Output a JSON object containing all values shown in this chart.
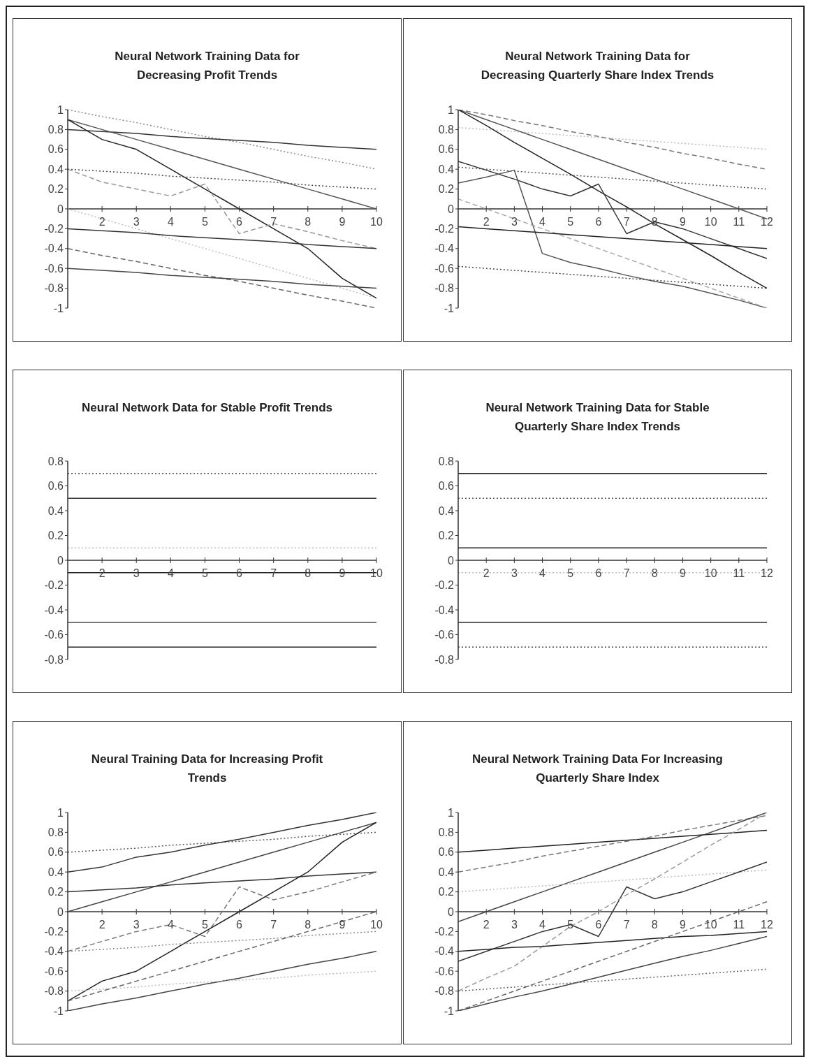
{
  "chart_data": [
    {
      "type": "line",
      "title": "Neural Network Training Data for Decreasing Profit Trends",
      "x": [
        1,
        2,
        3,
        4,
        5,
        6,
        7,
        8,
        9,
        10
      ],
      "xlim": [
        1,
        10
      ],
      "xticks": [
        2,
        3,
        4,
        5,
        6,
        7,
        8,
        9,
        10
      ],
      "ylim": [
        -1,
        1
      ],
      "yticks": [
        -1,
        -0.8,
        -0.6,
        -0.4,
        -0.2,
        0,
        0.2,
        0.4,
        0.6,
        0.8,
        1
      ],
      "series": [
        {
          "color": "#888888",
          "line_style": "dotted",
          "values": [
            1,
            0.93,
            0.87,
            0.8,
            0.73,
            0.67,
            0.6,
            0.53,
            0.47,
            0.4
          ]
        },
        {
          "color": "#333333",
          "values": [
            0.8,
            0.78,
            0.76,
            0.73,
            0.71,
            0.69,
            0.67,
            0.64,
            0.62,
            0.6
          ]
        },
        {
          "color": "#555555",
          "values": [
            0.9,
            0.8,
            0.7,
            0.6,
            0.5,
            0.4,
            0.3,
            0.2,
            0.1,
            0
          ]
        },
        {
          "color": "#222222",
          "values": [
            0.9,
            0.7,
            0.6,
            0.4,
            0.2,
            0,
            -0.2,
            -0.4,
            -0.7,
            -0.9
          ]
        },
        {
          "color": "#444444",
          "line_style": "dotted",
          "values": [
            0.4,
            0.38,
            0.36,
            0.33,
            0.31,
            0.29,
            0.27,
            0.24,
            0.22,
            0.2
          ]
        },
        {
          "color": "#999999",
          "line_style": "dashed",
          "values": [
            0.4,
            0.27,
            0.2,
            0.13,
            0.25,
            -0.25,
            -0.15,
            -0.23,
            -0.32,
            -0.4
          ]
        },
        {
          "color": "#bbbbbb",
          "line_style": "dotted",
          "values": [
            0,
            -0.1,
            -0.2,
            -0.3,
            -0.4,
            -0.5,
            -0.6,
            -0.7,
            -0.8,
            -0.9
          ]
        },
        {
          "color": "#333333",
          "values": [
            -0.2,
            -0.22,
            -0.24,
            -0.27,
            -0.29,
            -0.31,
            -0.33,
            -0.36,
            -0.38,
            -0.4
          ]
        },
        {
          "color": "#666666",
          "line_style": "dashed",
          "values": [
            -0.4,
            -0.47,
            -0.53,
            -0.6,
            -0.67,
            -0.73,
            -0.8,
            -0.87,
            -0.93,
            -1
          ]
        },
        {
          "color": "#444444",
          "values": [
            -0.6,
            -0.62,
            -0.64,
            -0.67,
            -0.69,
            -0.71,
            -0.73,
            -0.76,
            -0.78,
            -0.8
          ]
        }
      ]
    },
    {
      "type": "line",
      "title": "Neural Network Training Data for Decreasing Quarterly Share Index Trends",
      "x": [
        1,
        2,
        3,
        4,
        5,
        6,
        7,
        8,
        9,
        10,
        11,
        12
      ],
      "xlim": [
        1,
        12
      ],
      "xticks": [
        2,
        3,
        4,
        5,
        6,
        7,
        8,
        9,
        10,
        11,
        12
      ],
      "ylim": [
        -1,
        1
      ],
      "yticks": [
        -1,
        -0.8,
        -0.6,
        -0.4,
        -0.2,
        0,
        0.2,
        0.4,
        0.6,
        0.8,
        1
      ],
      "series": [
        {
          "color": "#bbbbbb",
          "line_style": "dotted",
          "values": [
            0.82,
            0.8,
            0.78,
            0.76,
            0.74,
            0.72,
            0.7,
            0.68,
            0.66,
            0.64,
            0.62,
            0.6
          ]
        },
        {
          "color": "#777777",
          "line_style": "dashed",
          "values": [
            1,
            0.95,
            0.89,
            0.84,
            0.78,
            0.73,
            0.67,
            0.62,
            0.56,
            0.51,
            0.45,
            0.4
          ]
        },
        {
          "color": "#555555",
          "values": [
            1,
            0.9,
            0.8,
            0.7,
            0.6,
            0.5,
            0.4,
            0.3,
            0.2,
            0.1,
            0,
            -0.1
          ]
        },
        {
          "color": "#222222",
          "values": [
            1,
            0.84,
            0.67,
            0.51,
            0.35,
            0.18,
            0.02,
            -0.15,
            -0.31,
            -0.47,
            -0.64,
            -0.8
          ]
        },
        {
          "color": "#555555",
          "line_style": "dotted",
          "values": [
            0.42,
            0.4,
            0.38,
            0.36,
            0.34,
            0.32,
            0.3,
            0.28,
            0.26,
            0.24,
            0.22,
            0.2
          ]
        },
        {
          "color": "#333333",
          "values": [
            0.48,
            0.39,
            0.3,
            0.2,
            0.13,
            0.25,
            -0.25,
            -0.13,
            -0.2,
            -0.3,
            -0.4,
            -0.5
          ]
        },
        {
          "color": "#555555",
          "values": [
            0.26,
            0.32,
            0.39,
            -0.45,
            -0.54,
            -0.6,
            -0.67,
            -0.73,
            -0.78,
            -0.85,
            -0.92,
            -1
          ]
        },
        {
          "color": "#aaaaaa",
          "line_style": "dashed",
          "values": [
            0.1,
            0,
            -0.1,
            -0.2,
            -0.3,
            -0.4,
            -0.5,
            -0.6,
            -0.7,
            -0.8,
            -0.9,
            -1
          ]
        },
        {
          "color": "#222222",
          "values": [
            -0.18,
            -0.2,
            -0.22,
            -0.24,
            -0.26,
            -0.28,
            -0.3,
            -0.32,
            -0.34,
            -0.36,
            -0.38,
            -0.4
          ]
        },
        {
          "color": "#444444",
          "line_style": "dotted",
          "values": [
            -0.58,
            -0.6,
            -0.62,
            -0.64,
            -0.66,
            -0.68,
            -0.7,
            -0.72,
            -0.74,
            -0.76,
            -0.78,
            -0.8
          ]
        }
      ]
    },
    {
      "type": "line",
      "title": "Neural Network Data for Stable Profit Trends",
      "x": [
        1,
        2,
        3,
        4,
        5,
        6,
        7,
        8,
        9,
        10
      ],
      "xlim": [
        1,
        10
      ],
      "xticks": [
        2,
        3,
        4,
        5,
        6,
        7,
        8,
        9,
        10
      ],
      "ylim": [
        -0.8,
        0.8
      ],
      "yticks": [
        -0.8,
        -0.6,
        -0.4,
        -0.2,
        0,
        0.2,
        0.4,
        0.6,
        0.8
      ],
      "series": [
        {
          "color": "#555555",
          "line_style": "dotted",
          "values": [
            0.7,
            0.7,
            0.7,
            0.7,
            0.7,
            0.7,
            0.7,
            0.7,
            0.7,
            0.7
          ]
        },
        {
          "color": "#333333",
          "values": [
            0.5,
            0.5,
            0.5,
            0.5,
            0.5,
            0.5,
            0.5,
            0.5,
            0.5,
            0.5
          ]
        },
        {
          "color": "#bbbbbb",
          "line_style": "dotted",
          "values": [
            0.1,
            0.1,
            0.1,
            0.1,
            0.1,
            0.1,
            0.1,
            0.1,
            0.1,
            0.1
          ]
        },
        {
          "color": "#222222",
          "values": [
            -0.1,
            -0.1,
            -0.1,
            -0.1,
            -0.1,
            -0.1,
            -0.1,
            -0.1,
            -0.1,
            -0.1
          ]
        },
        {
          "color": "#444444",
          "values": [
            -0.5,
            -0.5,
            -0.5,
            -0.5,
            -0.5,
            -0.5,
            -0.5,
            -0.5,
            -0.5,
            -0.5
          ]
        },
        {
          "color": "#222222",
          "values": [
            -0.7,
            -0.7,
            -0.7,
            -0.7,
            -0.7,
            -0.7,
            -0.7,
            -0.7,
            -0.7,
            -0.7
          ]
        }
      ]
    },
    {
      "type": "line",
      "title": "Neural Network Training Data for Stable Quarterly Share Index Trends",
      "x": [
        1,
        2,
        3,
        4,
        5,
        6,
        7,
        8,
        9,
        10,
        11,
        12
      ],
      "xlim": [
        1,
        12
      ],
      "xticks": [
        2,
        3,
        4,
        5,
        6,
        7,
        8,
        9,
        10,
        11,
        12
      ],
      "ylim": [
        -0.8,
        0.8
      ],
      "yticks": [
        -0.8,
        -0.6,
        -0.4,
        -0.2,
        0,
        0.2,
        0.4,
        0.6,
        0.8
      ],
      "series": [
        {
          "color": "#222222",
          "values": [
            0.7,
            0.7,
            0.7,
            0.7,
            0.7,
            0.7,
            0.7,
            0.7,
            0.7,
            0.7,
            0.7,
            0.7
          ]
        },
        {
          "color": "#555555",
          "line_style": "dotted",
          "values": [
            0.5,
            0.5,
            0.5,
            0.5,
            0.5,
            0.5,
            0.5,
            0.5,
            0.5,
            0.5,
            0.5,
            0.5
          ]
        },
        {
          "color": "#222222",
          "values": [
            0.1,
            0.1,
            0.1,
            0.1,
            0.1,
            0.1,
            0.1,
            0.1,
            0.1,
            0.1,
            0.1,
            0.1
          ]
        },
        {
          "color": "#bbbbbb",
          "line_style": "dotted",
          "values": [
            -0.1,
            -0.1,
            -0.1,
            -0.1,
            -0.1,
            -0.1,
            -0.1,
            -0.1,
            -0.1,
            -0.1,
            -0.1,
            -0.1
          ]
        },
        {
          "color": "#222222",
          "values": [
            -0.5,
            -0.5,
            -0.5,
            -0.5,
            -0.5,
            -0.5,
            -0.5,
            -0.5,
            -0.5,
            -0.5,
            -0.5,
            -0.5
          ]
        },
        {
          "color": "#444444",
          "line_style": "dotted",
          "values": [
            -0.7,
            -0.7,
            -0.7,
            -0.7,
            -0.7,
            -0.7,
            -0.7,
            -0.7,
            -0.7,
            -0.7,
            -0.7,
            -0.7
          ]
        }
      ]
    },
    {
      "type": "line",
      "title": "Neural Training Data for Increasing Profit Trends",
      "x": [
        1,
        2,
        3,
        4,
        5,
        6,
        7,
        8,
        9,
        10
      ],
      "xlim": [
        1,
        10
      ],
      "xticks": [
        2,
        3,
        4,
        5,
        6,
        7,
        8,
        9,
        10
      ],
      "ylim": [
        -1,
        1
      ],
      "yticks": [
        -1,
        -0.8,
        -0.6,
        -0.4,
        -0.2,
        0,
        0.2,
        0.4,
        0.6,
        0.8,
        1
      ],
      "series": [
        {
          "color": "#333333",
          "values": [
            0.4,
            0.45,
            0.55,
            0.6,
            0.67,
            0.73,
            0.8,
            0.87,
            0.93,
            1
          ]
        },
        {
          "color": "#555555",
          "line_style": "dotted",
          "values": [
            0.6,
            0.62,
            0.64,
            0.67,
            0.69,
            0.71,
            0.73,
            0.76,
            0.78,
            0.8
          ]
        },
        {
          "color": "#444444",
          "values": [
            0,
            0.1,
            0.2,
            0.3,
            0.4,
            0.5,
            0.6,
            0.7,
            0.8,
            0.9
          ]
        },
        {
          "color": "#333333",
          "values": [
            0.2,
            0.22,
            0.24,
            0.27,
            0.29,
            0.31,
            0.33,
            0.36,
            0.38,
            0.4
          ]
        },
        {
          "color": "#777777",
          "line_style": "dashed",
          "values": [
            -0.4,
            -0.3,
            -0.2,
            -0.13,
            -0.25,
            0.25,
            0.12,
            0.2,
            0.3,
            0.4
          ]
        },
        {
          "color": "#222222",
          "values": [
            -0.9,
            -0.7,
            -0.6,
            -0.4,
            -0.2,
            0,
            0.2,
            0.4,
            0.7,
            0.9
          ]
        },
        {
          "color": "#888888",
          "line_style": "dotted",
          "values": [
            -0.4,
            -0.38,
            -0.36,
            -0.33,
            -0.31,
            -0.29,
            -0.27,
            -0.24,
            -0.22,
            -0.2
          ]
        },
        {
          "color": "#666666",
          "line_style": "dashed",
          "values": [
            -0.9,
            -0.8,
            -0.7,
            -0.6,
            -0.5,
            -0.4,
            -0.3,
            -0.2,
            -0.1,
            0
          ]
        },
        {
          "color": "#444444",
          "values": [
            -1,
            -0.93,
            -0.87,
            -0.8,
            -0.73,
            -0.67,
            -0.6,
            -0.53,
            -0.47,
            -0.4
          ]
        },
        {
          "color": "#bbbbbb",
          "line_style": "dotted",
          "values": [
            -0.8,
            -0.78,
            -0.76,
            -0.73,
            -0.71,
            -0.69,
            -0.67,
            -0.64,
            -0.62,
            -0.6
          ]
        }
      ]
    },
    {
      "type": "line",
      "title": "Neural Network Training Data For Increasing Quarterly Share Index",
      "x": [
        1,
        2,
        3,
        4,
        5,
        6,
        7,
        8,
        9,
        10,
        11,
        12
      ],
      "xlim": [
        1,
        12
      ],
      "xticks": [
        2,
        3,
        4,
        5,
        6,
        7,
        8,
        9,
        10,
        11,
        12
      ],
      "ylim": [
        -1,
        1
      ],
      "yticks": [
        -1,
        -0.8,
        -0.6,
        -0.4,
        -0.2,
        0,
        0.2,
        0.4,
        0.6,
        0.8,
        1
      ],
      "series": [
        {
          "color": "#222222",
          "values": [
            0.6,
            0.62,
            0.64,
            0.66,
            0.68,
            0.7,
            0.72,
            0.74,
            0.76,
            0.78,
            0.8,
            0.82
          ]
        },
        {
          "color": "#777777",
          "line_style": "dashed",
          "values": [
            0.4,
            0.45,
            0.5,
            0.56,
            0.61,
            0.66,
            0.71,
            0.76,
            0.82,
            0.87,
            0.92,
            0.97
          ]
        },
        {
          "color": "#444444",
          "values": [
            -0.1,
            0,
            0.1,
            0.2,
            0.3,
            0.4,
            0.5,
            0.6,
            0.7,
            0.8,
            0.9,
            1
          ]
        },
        {
          "color": "#bbbbbb",
          "line_style": "dotted",
          "values": [
            0.2,
            0.22,
            0.24,
            0.26,
            0.28,
            0.3,
            0.32,
            0.34,
            0.36,
            0.38,
            0.4,
            0.42
          ]
        },
        {
          "color": "#333333",
          "values": [
            -0.5,
            -0.4,
            -0.3,
            -0.2,
            -0.13,
            -0.25,
            0.25,
            0.13,
            0.2,
            0.3,
            0.4,
            0.5
          ]
        },
        {
          "color": "#999999",
          "line_style": "dashed",
          "values": [
            -0.8,
            -0.67,
            -0.55,
            -0.35,
            -0.15,
            0,
            0.17,
            0.33,
            0.5,
            0.67,
            0.83,
            1
          ]
        },
        {
          "color": "#222222",
          "values": [
            -0.4,
            -0.38,
            -0.36,
            -0.35,
            -0.33,
            -0.31,
            -0.29,
            -0.27,
            -0.25,
            -0.24,
            -0.22,
            -0.2
          ]
        },
        {
          "color": "#666666",
          "line_style": "dashed",
          "values": [
            -1,
            -0.9,
            -0.8,
            -0.7,
            -0.6,
            -0.5,
            -0.4,
            -0.3,
            -0.2,
            -0.1,
            0,
            0.1
          ]
        },
        {
          "color": "#444444",
          "values": [
            -1,
            -0.93,
            -0.86,
            -0.8,
            -0.73,
            -0.66,
            -0.59,
            -0.52,
            -0.45,
            -0.39,
            -0.32,
            -0.25
          ]
        },
        {
          "color": "#666666",
          "line_style": "dotted",
          "values": [
            -0.8,
            -0.78,
            -0.76,
            -0.74,
            -0.72,
            -0.7,
            -0.68,
            -0.66,
            -0.64,
            -0.62,
            -0.6,
            -0.58
          ]
        }
      ]
    }
  ]
}
